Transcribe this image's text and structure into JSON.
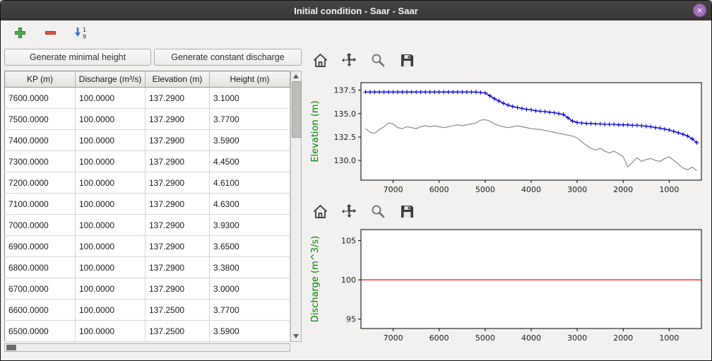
{
  "window": {
    "title": "Initial condition - Saar - Saar",
    "close_glyph": "×"
  },
  "toolbar": {
    "add": "add row",
    "remove": "remove row",
    "sort": "sort rows",
    "sort_digits": [
      "1",
      "9"
    ]
  },
  "buttons": {
    "min_height": "Generate minimal height",
    "const_discharge": "Generate constant discharge"
  },
  "table": {
    "columns": [
      "KP (m)",
      "Discharge (m³/s)",
      "Elevation (m)",
      "Height (m)"
    ],
    "rows": [
      [
        "7600.0000",
        "100.0000",
        "137.2900",
        "3.1000"
      ],
      [
        "7500.0000",
        "100.0000",
        "137.2900",
        "3.7700"
      ],
      [
        "7400.0000",
        "100.0000",
        "137.2900",
        "3.5900"
      ],
      [
        "7300.0000",
        "100.0000",
        "137.2900",
        "4.4500"
      ],
      [
        "7200.0000",
        "100.0000",
        "137.2900",
        "4.6100"
      ],
      [
        "7100.0000",
        "100.0000",
        "137.2900",
        "4.6300"
      ],
      [
        "7000.0000",
        "100.0000",
        "137.2900",
        "3.9300"
      ],
      [
        "6900.0000",
        "100.0000",
        "137.2900",
        "3.6500"
      ],
      [
        "6800.0000",
        "100.0000",
        "137.2900",
        "3.3800"
      ],
      [
        "6700.0000",
        "100.0000",
        "137.2900",
        "3.0000"
      ],
      [
        "6600.0000",
        "100.0000",
        "137.2500",
        "3.7700"
      ],
      [
        "6500.0000",
        "100.0000",
        "137.2500",
        "3.5900"
      ]
    ]
  },
  "plot_toolbar": {
    "buttons": [
      "home",
      "pan",
      "zoom",
      "save"
    ]
  },
  "chart_data": [
    {
      "type": "line",
      "title": "",
      "xlabel": "",
      "ylabel": "Elevation (m)",
      "ylabel_color": "#008000",
      "xlim": [
        7700,
        300
      ],
      "ylim": [
        127.9,
        138.3
      ],
      "x_reversed": true,
      "grid": false,
      "xticks": [
        7000,
        6000,
        5000,
        4000,
        3000,
        2000,
        1000
      ],
      "yticks": [
        137.5,
        135.0,
        132.5,
        130.0
      ],
      "ytick_labels": [
        "137.5",
        "135.0",
        "132.5",
        "130.0"
      ],
      "series": [
        {
          "name": "water-surface-elevation",
          "color": "#0000dd",
          "marker": "plus",
          "width": 1.3,
          "x": [
            7600,
            7500,
            7400,
            7300,
            7200,
            7100,
            7000,
            6900,
            6800,
            6700,
            6600,
            6500,
            6400,
            6300,
            6200,
            6100,
            6000,
            5900,
            5800,
            5700,
            5600,
            5500,
            5400,
            5300,
            5200,
            5100,
            5000,
            4900,
            4800,
            4700,
            4600,
            4500,
            4400,
            4300,
            4200,
            4100,
            4000,
            3900,
            3800,
            3700,
            3600,
            3500,
            3400,
            3300,
            3200,
            3100,
            3000,
            2900,
            2800,
            2700,
            2600,
            2500,
            2400,
            2300,
            2200,
            2100,
            2000,
            1900,
            1800,
            1700,
            1600,
            1500,
            1400,
            1300,
            1200,
            1100,
            1000,
            900,
            800,
            700,
            600,
            500,
            400
          ],
          "y": [
            137.3,
            137.3,
            137.3,
            137.3,
            137.3,
            137.3,
            137.3,
            137.3,
            137.3,
            137.3,
            137.3,
            137.3,
            137.3,
            137.3,
            137.3,
            137.3,
            137.3,
            137.3,
            137.3,
            137.3,
            137.3,
            137.3,
            137.3,
            137.3,
            137.3,
            137.25,
            137.2,
            136.9,
            136.6,
            136.35,
            136.1,
            135.9,
            135.75,
            135.65,
            135.55,
            135.45,
            135.4,
            135.3,
            135.25,
            135.2,
            135.15,
            135.1,
            135.0,
            134.9,
            134.55,
            134.2,
            134.05,
            134.0,
            133.95,
            133.95,
            133.9,
            133.9,
            133.85,
            133.85,
            133.85,
            133.8,
            133.8,
            133.8,
            133.75,
            133.75,
            133.7,
            133.65,
            133.6,
            133.5,
            133.45,
            133.35,
            133.25,
            133.1,
            132.95,
            132.8,
            132.6,
            132.3,
            131.9
          ]
        },
        {
          "name": "bed-elevation",
          "color": "#808080",
          "width": 1.1,
          "x": [
            7600,
            7500,
            7400,
            7300,
            7200,
            7100,
            7000,
            6900,
            6800,
            6700,
            6600,
            6500,
            6400,
            6300,
            6200,
            6100,
            6000,
            5900,
            5800,
            5700,
            5600,
            5500,
            5400,
            5300,
            5200,
            5100,
            5000,
            4900,
            4800,
            4700,
            4600,
            4500,
            4400,
            4300,
            4200,
            4100,
            4000,
            3900,
            3800,
            3700,
            3600,
            3500,
            3400,
            3300,
            3200,
            3100,
            3000,
            2900,
            2800,
            2700,
            2600,
            2500,
            2400,
            2300,
            2200,
            2100,
            2000,
            1900,
            1800,
            1700,
            1600,
            1500,
            1400,
            1300,
            1200,
            1100,
            1000,
            900,
            800,
            700,
            600,
            500,
            400
          ],
          "y": [
            133.4,
            133.0,
            132.9,
            133.3,
            133.6,
            134.0,
            133.9,
            133.5,
            133.4,
            133.6,
            133.5,
            133.4,
            133.6,
            133.7,
            133.6,
            133.7,
            133.6,
            133.5,
            133.6,
            133.7,
            133.8,
            133.7,
            133.8,
            133.9,
            134.0,
            134.3,
            134.35,
            134.2,
            133.9,
            133.7,
            133.6,
            133.5,
            133.6,
            133.7,
            133.6,
            133.5,
            133.4,
            133.35,
            133.3,
            133.2,
            133.1,
            133.0,
            132.9,
            132.8,
            132.7,
            132.6,
            132.4,
            132.0,
            131.6,
            131.3,
            131.1,
            131.3,
            131.0,
            130.8,
            131.0,
            130.7,
            130.4,
            129.3,
            129.8,
            130.3,
            129.9,
            130.1,
            130.2,
            130.0,
            129.9,
            130.2,
            130.4,
            130.0,
            129.6,
            129.2,
            129.0,
            129.3,
            128.9
          ]
        }
      ]
    },
    {
      "type": "line",
      "title": "",
      "xlabel": "",
      "ylabel": "Discharge (m^3/s)",
      "ylabel_color": "#008000",
      "xlim": [
        7700,
        300
      ],
      "ylim": [
        93.8,
        106.4
      ],
      "x_reversed": true,
      "grid": false,
      "xticks": [
        7000,
        6000,
        5000,
        4000,
        3000,
        2000,
        1000
      ],
      "yticks": [
        105,
        100,
        95
      ],
      "ytick_labels": [
        "105",
        "100",
        "95"
      ],
      "series": [
        {
          "name": "constant-discharge",
          "color": "#ff0000",
          "width": 1.3,
          "x": [
            7700,
            300
          ],
          "y": [
            100,
            100
          ]
        }
      ]
    }
  ]
}
